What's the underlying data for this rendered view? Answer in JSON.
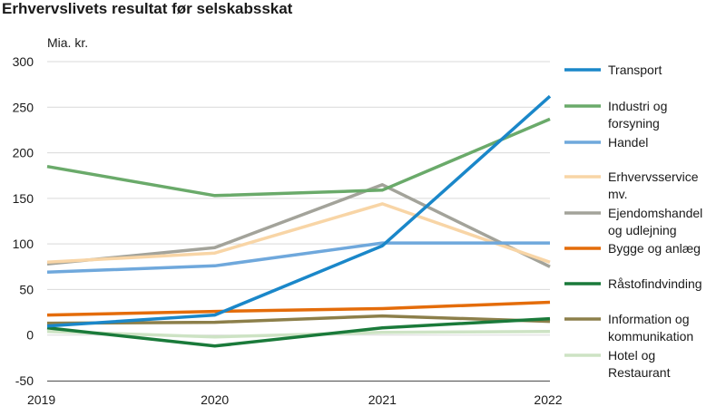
{
  "chart_data": {
    "type": "line",
    "title": "Erhvervslivets resultat før selskabsskat",
    "ylabel": "Mia. kr.",
    "xlabel": "",
    "categories": [
      "2019",
      "2020",
      "2021",
      "2022"
    ],
    "ylim": [
      -50,
      300
    ],
    "yticks": [
      300,
      250,
      200,
      150,
      100,
      50,
      0,
      -50
    ],
    "grid": true,
    "legend_position": "right",
    "series": [
      {
        "name_lines": [
          "Transport"
        ],
        "color": "#1a87c9",
        "values": [
          10,
          22,
          98,
          262
        ]
      },
      {
        "name_lines": [
          "Industri og",
          "forsyning"
        ],
        "color": "#6aaa6a",
        "values": [
          185,
          153,
          159,
          237
        ]
      },
      {
        "name_lines": [
          "Handel"
        ],
        "color": "#6fa8dc",
        "values": [
          69,
          76,
          101,
          101
        ]
      },
      {
        "name_lines": [
          "Erhvervsservice",
          "mv."
        ],
        "color": "#f8d5a6",
        "values": [
          80,
          90,
          144,
          80
        ]
      },
      {
        "name_lines": [
          "Ejendomshandel",
          "og udlejning"
        ],
        "color": "#a3a39a",
        "values": [
          78,
          96,
          165,
          75
        ]
      },
      {
        "name_lines": [
          "Bygge og anlæg"
        ],
        "color": "#e46c0a",
        "values": [
          22,
          26,
          29,
          36
        ]
      },
      {
        "name_lines": [
          "Råstofindvinding"
        ],
        "color": "#1a7a3a",
        "values": [
          8,
          -12,
          8,
          18
        ]
      },
      {
        "name_lines": [
          "Information og",
          "kommunikation"
        ],
        "color": "#8c7f4a",
        "values": [
          13,
          14,
          21,
          15
        ]
      },
      {
        "name_lines": [
          "Hotel og",
          "Restaurant"
        ],
        "color": "#cde3c4",
        "values": [
          4,
          -2,
          3,
          4
        ]
      }
    ]
  }
}
